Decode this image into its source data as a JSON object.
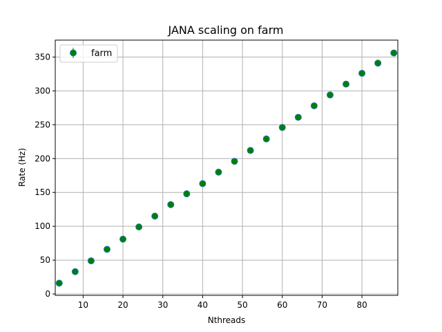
{
  "chart_data": {
    "type": "scatter",
    "title": "JANA scaling on farm",
    "xlabel": "Nthreads",
    "ylabel": "Rate (Hz)",
    "xlim": [
      3,
      89
    ],
    "ylim": [
      -2,
      375
    ],
    "xticks": [
      10,
      20,
      30,
      40,
      50,
      60,
      70,
      80
    ],
    "yticks": [
      0,
      50,
      100,
      150,
      200,
      250,
      300,
      350
    ],
    "grid": true,
    "legend_position": "top-left",
    "marker_fill": "#008000",
    "marker_edge": "#1f77b4",
    "series": [
      {
        "name": "farm",
        "x": [
          4,
          8,
          12,
          16,
          20,
          24,
          28,
          32,
          36,
          40,
          44,
          48,
          52,
          56,
          60,
          64,
          68,
          72,
          76,
          80,
          84,
          88
        ],
        "y": [
          16,
          33,
          49,
          66,
          81,
          99,
          115,
          132,
          148,
          163,
          180,
          196,
          212,
          229,
          246,
          261,
          278,
          294,
          310,
          326,
          341,
          356
        ]
      }
    ]
  }
}
